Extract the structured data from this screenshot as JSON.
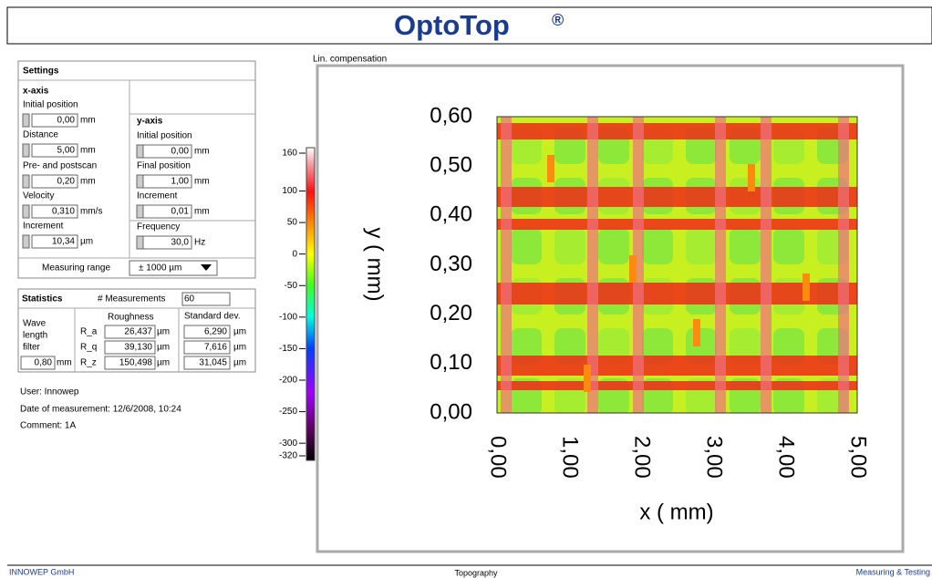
{
  "header": {
    "title": "OptoTop",
    "mark": "®"
  },
  "settings": {
    "title": "Settings",
    "x_axis": {
      "title": "x-axis",
      "fields": [
        {
          "label": "Initial position",
          "value": "0,00",
          "unit": "mm"
        },
        {
          "label": "Distance",
          "value": "5,00",
          "unit": "mm"
        },
        {
          "label": "Pre- and postscan",
          "value": "0,20",
          "unit": "mm"
        },
        {
          "label": "Velocity",
          "value": "0,310",
          "unit": "mm/s"
        },
        {
          "label": "Increment",
          "value": "10,34",
          "unit": "µm"
        }
      ]
    },
    "y_axis": {
      "title": "y-axis",
      "fields": [
        {
          "label": "Initial position",
          "value": "0,00",
          "unit": "mm"
        },
        {
          "label": "Final position",
          "value": "1,00",
          "unit": "mm"
        },
        {
          "label": "Increment",
          "value": "0,01",
          "unit": "mm"
        },
        {
          "label": "Frequency",
          "value": "30,0",
          "unit": "Hz"
        }
      ]
    },
    "measuring_range": {
      "label": "Measuring range",
      "value": "± 1000 µm"
    }
  },
  "statistics": {
    "title": "Statistics",
    "measurements_label": "# Measurements",
    "measurements": "60",
    "roughness_header": "Roughness",
    "stddev_header": "Standard dev.",
    "filter_label": [
      "Wave",
      "length",
      "filter"
    ],
    "filter_value": "0,80",
    "filter_unit": "mm",
    "rows": [
      {
        "name": "R_a",
        "roughness": "26,437",
        "roughness_unit": "µm",
        "stddev": "6,290",
        "stddev_unit": "µm"
      },
      {
        "name": "R_q",
        "roughness": "39,130",
        "roughness_unit": "µm",
        "stddev": "7,616",
        "stddev_unit": "µm"
      },
      {
        "name": "R_z",
        "roughness": "150,498",
        "roughness_unit": "µm",
        "stddev": "31,045",
        "stddev_unit": "µm"
      }
    ]
  },
  "info": [
    "User: Innowep",
    "Date of measurement: 12/6/2008, 10:24",
    "Comment: 1A"
  ],
  "plot": {
    "caption": "Lin. compensation",
    "colorbar_ticks": [
      160,
      100,
      50,
      0,
      -50,
      -100,
      -150,
      -200,
      -250,
      -300,
      -320
    ],
    "y_label": "y ( mm)",
    "y_ticks": [
      "0,60",
      "0,50",
      "0,40",
      "0,30",
      "0,20",
      "0,10",
      "0,00"
    ],
    "x_label": "x ( mm)",
    "x_ticks": [
      "0,00",
      "1,00",
      "2,00",
      "3,00",
      "4,00",
      "5,00"
    ]
  },
  "footer": {
    "left": "INNOWEP GmbH",
    "center": "Topography",
    "right": "Measuring & Testing"
  }
}
